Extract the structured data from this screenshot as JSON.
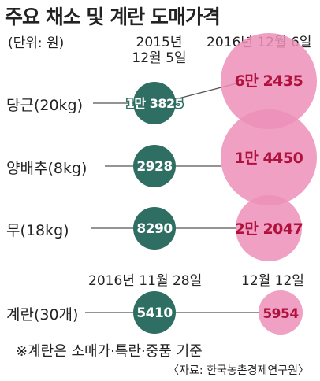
{
  "title": "주요 채소 및 계란 도매가격",
  "unit": "(단위: 원)",
  "headers": {
    "col1_line1": "2015년",
    "col1_line2": "12월 5일",
    "col2": "2016년 12월 6일",
    "col3": "2016년 11월 28일",
    "col4": "12월 12일"
  },
  "chart_data": {
    "type": "bubble",
    "title": "주요 채소 및 계란 도매가격",
    "unit": "(단위: 원)",
    "rows": [
      {
        "label": "당근(20kg)",
        "before": 13825,
        "before_label": "1만 3825",
        "after": 62435,
        "after_label": "6만 2435"
      },
      {
        "label": "양배추(8kg)",
        "before": 2928,
        "before_label": "2928",
        "after": 14450,
        "after_label": "1만 4450"
      },
      {
        "label": "무(18kg)",
        "before": 8290,
        "before_label": "8290",
        "after": 22047,
        "after_label": "2만 2047"
      },
      {
        "label": "계란(30개)",
        "before": 5410,
        "before_label": "5410",
        "after": 5954,
        "after_label": "5954"
      }
    ],
    "colors": {
      "before": "#2f6e62",
      "after": "#ec8fb8",
      "after_text": "#b0123d",
      "line": "#555555"
    }
  },
  "footnote": "※계란은 소매가·특란·중품 기준",
  "source": "〈자료: 한국농촌경제연구원〉"
}
